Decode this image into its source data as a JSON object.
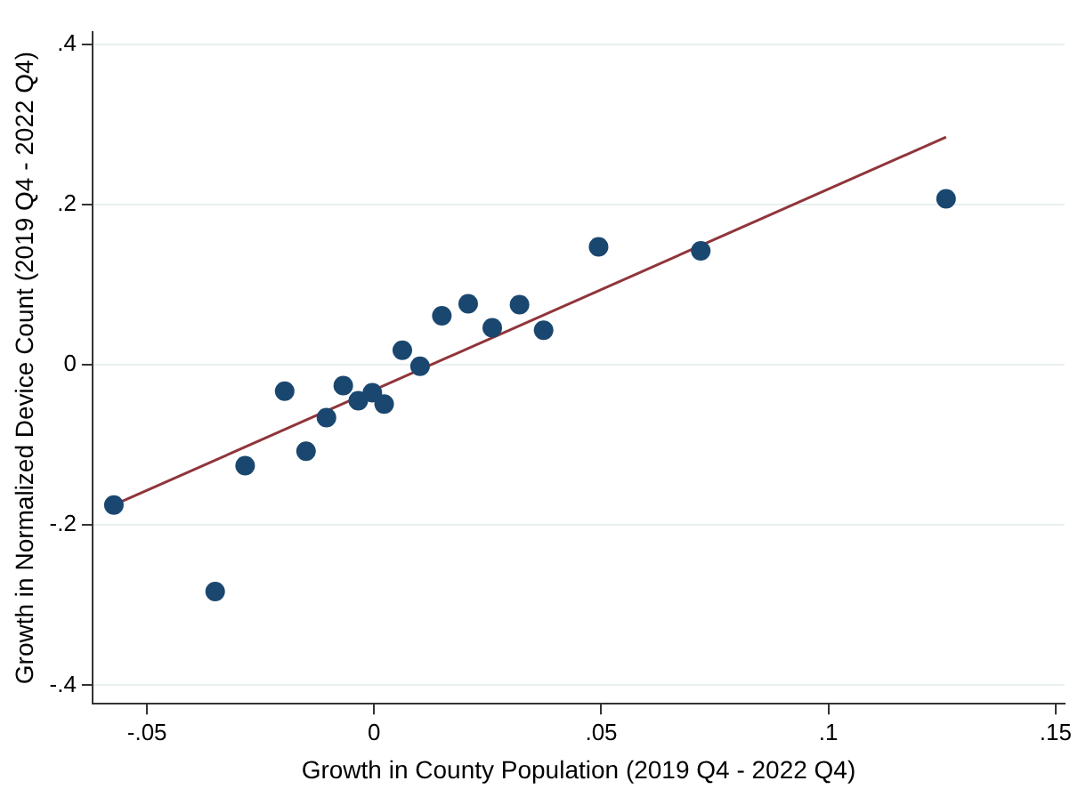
{
  "chart_data": {
    "type": "scatter",
    "xlabel": "Growth in County Population (2019 Q4 - 2022 Q4)",
    "ylabel": "Growth in Normalized Device Count (2019 Q4 - 2022 Q4)",
    "xlim": [
      -0.062,
      0.152
    ],
    "ylim": [
      -0.423,
      0.415
    ],
    "xticks": [
      {
        "value": -0.05,
        "label": "-.05"
      },
      0,
      {
        "value": 0.05,
        "label": ".05"
      },
      {
        "value": 0.1,
        "label": ".1"
      },
      {
        "value": 0.15,
        "label": ".15"
      }
    ],
    "yticks": [
      {
        "value": -0.4,
        "label": "-.4"
      },
      {
        "value": -0.2,
        "label": "-.2"
      },
      0,
      {
        "value": 0.2,
        "label": ".2"
      },
      {
        "value": 0.4,
        "label": ".4"
      }
    ],
    "grid": "y",
    "legend": false,
    "marker": "circle",
    "series": [
      {
        "type": "scatter",
        "color": "#1a476f",
        "x": [
          -0.0573,
          -0.035,
          -0.0284,
          -0.0197,
          -0.015,
          -0.0105,
          -0.0068,
          -0.0035,
          -0.0004,
          0.0022,
          0.0062,
          0.0101,
          0.0149,
          0.0207,
          0.026,
          0.032,
          0.0373,
          0.0494,
          0.0719,
          0.1259
        ],
        "values": [
          -0.175,
          -0.283,
          -0.126,
          -0.033,
          -0.108,
          -0.066,
          -0.026,
          -0.045,
          -0.035,
          -0.049,
          0.018,
          -0.002,
          0.061,
          0.076,
          0.046,
          0.075,
          0.043,
          0.147,
          0.142,
          0.207
        ]
      },
      {
        "type": "line",
        "color": "#90353b",
        "x": [
          -0.0573,
          0.1259
        ],
        "values": [
          -0.175,
          0.284
        ],
        "marker": "none",
        "line_style": "solid"
      }
    ]
  }
}
